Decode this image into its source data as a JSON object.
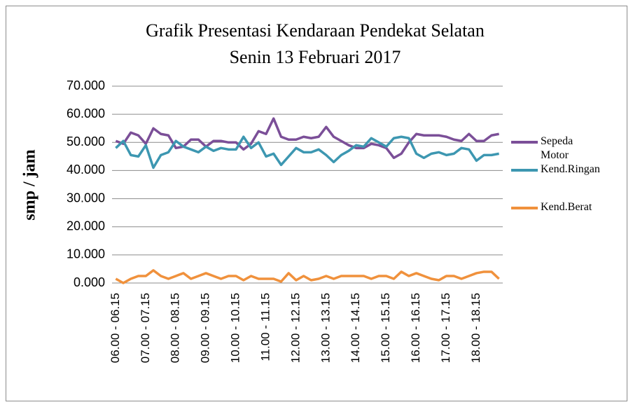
{
  "chart_data": {
    "type": "line",
    "title": "Grafik Presentasi Kendaraan Pendekat Selatan",
    "subtitle": "Senin 13 Februari 2017",
    "y_label": "smp / jam",
    "categories": [
      "06.00 - 06.15",
      null,
      null,
      null,
      "07.00 - 07.15",
      null,
      null,
      null,
      "08.00 - 08.15",
      null,
      null,
      null,
      "09.00 - 09.15",
      null,
      null,
      null,
      "10.00 - 10.15",
      null,
      null,
      null,
      "11.00 - 11.15",
      null,
      null,
      null,
      "12.00 - 12.15",
      null,
      null,
      null,
      "13.00 - 13.15",
      null,
      null,
      null,
      "14.00 - 14.15",
      null,
      null,
      null,
      "15.00 - 15.15",
      null,
      null,
      null,
      "16.00 - 16.15",
      null,
      null,
      null,
      "17.00 - 17.15",
      null,
      null,
      null,
      "18.00 - 18.15",
      null,
      null,
      null
    ],
    "series": [
      {
        "name": "Sepeda Motor",
        "color": "#7b4f98",
        "values": [
          50.5,
          49.5,
          53.5,
          52.5,
          49.5,
          55,
          53,
          52.5,
          48,
          48.5,
          51,
          51,
          48.5,
          50.5,
          50.5,
          50,
          50,
          47.5,
          49.5,
          54,
          53,
          58.5,
          52,
          51,
          51,
          52,
          51.5,
          52,
          55.5,
          52,
          50.5,
          49,
          48,
          48,
          49.5,
          49,
          48,
          44.5,
          46,
          50,
          53,
          52.5,
          52.5,
          52.5,
          52,
          51,
          50.5,
          53,
          50.5,
          50.5,
          52.5,
          53
        ]
      },
      {
        "name": "Kend.Ringan",
        "color": "#3d97b1",
        "values": [
          48,
          50.5,
          45.5,
          45,
          49,
          41,
          45.5,
          46.5,
          50.5,
          48.5,
          47.5,
          46.5,
          48.5,
          47,
          48,
          47.5,
          47.5,
          52,
          48,
          50,
          45,
          46,
          42,
          45,
          48,
          46.5,
          46.5,
          47.5,
          45.5,
          43,
          45.5,
          47,
          49,
          48.5,
          51.5,
          50,
          48.5,
          51.5,
          52,
          51.5,
          46,
          44.5,
          46,
          46.5,
          45.5,
          46,
          48,
          47.5,
          43.5,
          45.5,
          45.5,
          46
        ]
      },
      {
        "name": "Kend.Berat",
        "color": "#f0913c",
        "values": [
          1.5,
          0,
          1.5,
          2.5,
          2.5,
          4.5,
          2.5,
          1.5,
          2.5,
          3.5,
          1.5,
          2.5,
          3.5,
          2.5,
          1.5,
          2.5,
          2.5,
          1,
          2.5,
          1.5,
          1.5,
          1.5,
          0.5,
          3.5,
          1,
          2.5,
          1,
          1.5,
          2.5,
          1.5,
          2.5,
          2.5,
          2.5,
          2.5,
          1.5,
          2.5,
          2.5,
          1.5,
          4,
          2.5,
          3.5,
          2.5,
          1.5,
          1,
          2.5,
          2.5,
          1.5,
          2.5,
          3.5,
          4,
          4,
          1.5
        ]
      }
    ],
    "ylim": [
      0,
      70
    ],
    "yticks": [
      {
        "value": 0,
        "label": "0.000"
      },
      {
        "value": 10,
        "label": "10.000"
      },
      {
        "value": 20,
        "label": "20.000"
      },
      {
        "value": 30,
        "label": "30.000"
      },
      {
        "value": 40,
        "label": "40.000"
      },
      {
        "value": 50,
        "label": "50.000"
      },
      {
        "value": 60,
        "label": "60.000"
      },
      {
        "value": 70,
        "label": "70.000"
      }
    ],
    "grid": true,
    "legend": "right"
  }
}
